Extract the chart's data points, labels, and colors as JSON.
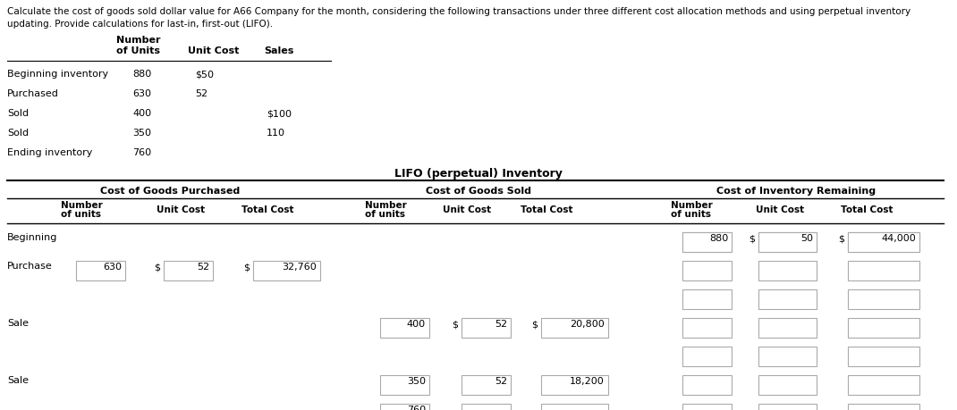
{
  "title_line1": "Calculate the cost of goods sold dollar value for A66 Company for the month, considering the following transactions under three different cost allocation methods and using perpetual inventory",
  "title_line2": "updating. Provide calculations for last-in, first-out (LIFO).",
  "top_rows": [
    [
      "Beginning inventory",
      "880",
      "$50",
      ""
    ],
    [
      "Purchased",
      "630",
      "52",
      ""
    ],
    [
      "Sold",
      "400",
      "",
      "$100"
    ],
    [
      "Sold",
      "350",
      "",
      "110"
    ],
    [
      "Ending inventory",
      "760",
      "",
      ""
    ]
  ],
  "lifo_title": "LIFO (perpetual) Inventory",
  "section_headers": [
    "Cost of Goods Purchased",
    "Cost of Goods Sold",
    "Cost of Inventory Remaining"
  ],
  "row_labels": [
    "Beginning",
    "Purchase",
    "",
    "Sale",
    "",
    "Sale",
    ""
  ],
  "bg_color": "#ffffff",
  "font_color": "#000000",
  "box_edge_color": "#999999"
}
